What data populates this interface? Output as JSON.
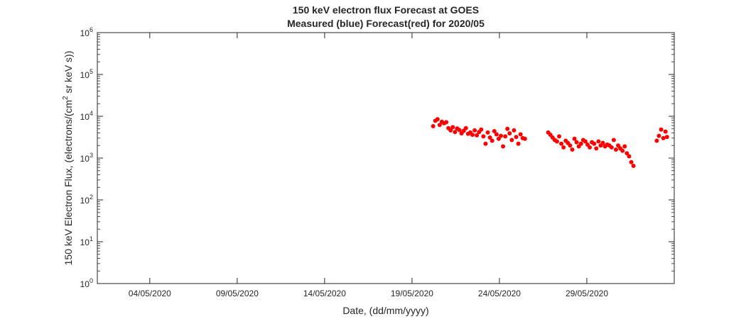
{
  "chart_data": {
    "type": "scatter",
    "title": "150 keV electron flux Forecast at GOES",
    "subtitle": "Measured (blue) Forecast(red) for 2020/05",
    "xlabel": "Date, (dd/mm/yyyy)",
    "ylabel": "150 keV Electron Flux, (electrons/(cm² sr keV s))",
    "ylabel_parts": {
      "before": "150 keV Electron Flux, (electrons/(cm",
      "sup": "2",
      "after": " sr keV s))"
    },
    "yscale": "log",
    "ylim": [
      1,
      1000000
    ],
    "xlim": [
      "2020-05-01",
      "2020-06-03"
    ],
    "grid": false,
    "xticks": [
      {
        "date": "2020-05-04",
        "label": "04/05/2020"
      },
      {
        "date": "2020-05-09",
        "label": "09/05/2020"
      },
      {
        "date": "2020-05-14",
        "label": "14/05/2020"
      },
      {
        "date": "2020-05-19",
        "label": "19/05/2020"
      },
      {
        "date": "2020-05-24",
        "label": "24/05/2020"
      },
      {
        "date": "2020-05-29",
        "label": "29/05/2020"
      }
    ],
    "yticks": [
      {
        "value": 1,
        "base": "10",
        "exp": "0"
      },
      {
        "value": 10,
        "base": "10",
        "exp": "1"
      },
      {
        "value": 100,
        "base": "10",
        "exp": "2"
      },
      {
        "value": 1000,
        "base": "10",
        "exp": "3"
      },
      {
        "value": 10000,
        "base": "10",
        "exp": "4"
      },
      {
        "value": 100000,
        "base": "10",
        "exp": "5"
      },
      {
        "value": 1000000,
        "base": "10",
        "exp": "6"
      }
    ],
    "series": [
      {
        "color": "#ff0000",
        "points": [
          [
            "2020-05-20T05:00",
            5800
          ],
          [
            "2020-05-20T08:00",
            7800
          ],
          [
            "2020-05-20T11:00",
            8500
          ],
          [
            "2020-05-20T14:00",
            6200
          ],
          [
            "2020-05-20T17:00",
            7400
          ],
          [
            "2020-05-20T20:00",
            6800
          ],
          [
            "2020-05-20T23:00",
            7200
          ],
          [
            "2020-05-21T02:00",
            5200
          ],
          [
            "2020-05-21T05:00",
            4600
          ],
          [
            "2020-05-21T08:00",
            5500
          ],
          [
            "2020-05-21T11:00",
            4200
          ],
          [
            "2020-05-21T14:00",
            5100
          ],
          [
            "2020-05-21T17:00",
            4700
          ],
          [
            "2020-05-21T20:00",
            3900
          ],
          [
            "2020-05-21T23:00",
            4500
          ],
          [
            "2020-05-22T02:00",
            5200
          ],
          [
            "2020-05-22T05:00",
            3800
          ],
          [
            "2020-05-22T08:00",
            4100
          ],
          [
            "2020-05-22T11:00",
            3600
          ],
          [
            "2020-05-22T14:00",
            4600
          ],
          [
            "2020-05-22T17:00",
            3500
          ],
          [
            "2020-05-22T20:00",
            4200
          ],
          [
            "2020-05-22T23:00",
            4800
          ],
          [
            "2020-05-23T02:00",
            3300
          ],
          [
            "2020-05-23T05:00",
            2200
          ],
          [
            "2020-05-23T08:00",
            4100
          ],
          [
            "2020-05-23T11:00",
            3100
          ],
          [
            "2020-05-23T14:00",
            2600
          ],
          [
            "2020-05-23T17:00",
            4400
          ],
          [
            "2020-05-23T20:00",
            3700
          ],
          [
            "2020-05-23T23:00",
            2900
          ],
          [
            "2020-05-24T02:00",
            3400
          ],
          [
            "2020-05-24T05:00",
            1900
          ],
          [
            "2020-05-24T08:00",
            3300
          ],
          [
            "2020-05-24T11:00",
            5000
          ],
          [
            "2020-05-24T14:00",
            3900
          ],
          [
            "2020-05-24T17:00",
            2700
          ],
          [
            "2020-05-24T20:00",
            4600
          ],
          [
            "2020-05-24T23:00",
            3200
          ],
          [
            "2020-05-25T02:00",
            2200
          ],
          [
            "2020-05-25T05:00",
            3700
          ],
          [
            "2020-05-25T08:00",
            3000
          ],
          [
            "2020-05-25T11:00",
            2900
          ],
          [
            "2020-05-26T19:00",
            4100
          ],
          [
            "2020-05-26T22:00",
            3600
          ],
          [
            "2020-05-27T01:00",
            3100
          ],
          [
            "2020-05-27T04:00",
            2700
          ],
          [
            "2020-05-27T07:00",
            2500
          ],
          [
            "2020-05-27T10:00",
            3300
          ],
          [
            "2020-05-27T13:00",
            2200
          ],
          [
            "2020-05-27T16:00",
            1800
          ],
          [
            "2020-05-27T19:00",
            2600
          ],
          [
            "2020-05-27T22:00",
            2300
          ],
          [
            "2020-05-28T01:00",
            2000
          ],
          [
            "2020-05-28T04:00",
            1600
          ],
          [
            "2020-05-28T07:00",
            2900
          ],
          [
            "2020-05-28T10:00",
            2400
          ],
          [
            "2020-05-28T13:00",
            1900
          ],
          [
            "2020-05-28T16:00",
            2200
          ],
          [
            "2020-05-28T19:00",
            2700
          ],
          [
            "2020-05-28T22:00",
            2500
          ],
          [
            "2020-05-29T01:00",
            2100
          ],
          [
            "2020-05-29T04:00",
            1800
          ],
          [
            "2020-05-29T07:00",
            2400
          ],
          [
            "2020-05-29T10:00",
            2200
          ],
          [
            "2020-05-29T13:00",
            1700
          ],
          [
            "2020-05-29T16:00",
            2500
          ],
          [
            "2020-05-29T19:00",
            2000
          ],
          [
            "2020-05-29T22:00",
            2300
          ],
          [
            "2020-05-30T01:00",
            1900
          ],
          [
            "2020-05-30T04:00",
            2100
          ],
          [
            "2020-05-30T07:00",
            2000
          ],
          [
            "2020-05-30T10:00",
            1800
          ],
          [
            "2020-05-30T13:00",
            2700
          ],
          [
            "2020-05-30T16:00",
            1600
          ],
          [
            "2020-05-30T19:00",
            2000
          ],
          [
            "2020-05-30T22:00",
            1700
          ],
          [
            "2020-05-31T01:00",
            1500
          ],
          [
            "2020-05-31T04:00",
            1900
          ],
          [
            "2020-05-31T07:00",
            1300
          ],
          [
            "2020-05-31T10:00",
            1100
          ],
          [
            "2020-05-31T13:00",
            800
          ],
          [
            "2020-05-31T16:00",
            650
          ],
          [
            "2020-06-02T00:00",
            2600
          ],
          [
            "2020-06-02T03:00",
            3400
          ],
          [
            "2020-06-02T06:00",
            4800
          ],
          [
            "2020-06-02T09:00",
            3000
          ],
          [
            "2020-06-02T12:00",
            4300
          ],
          [
            "2020-06-02T14:00",
            3200
          ]
        ]
      }
    ]
  }
}
